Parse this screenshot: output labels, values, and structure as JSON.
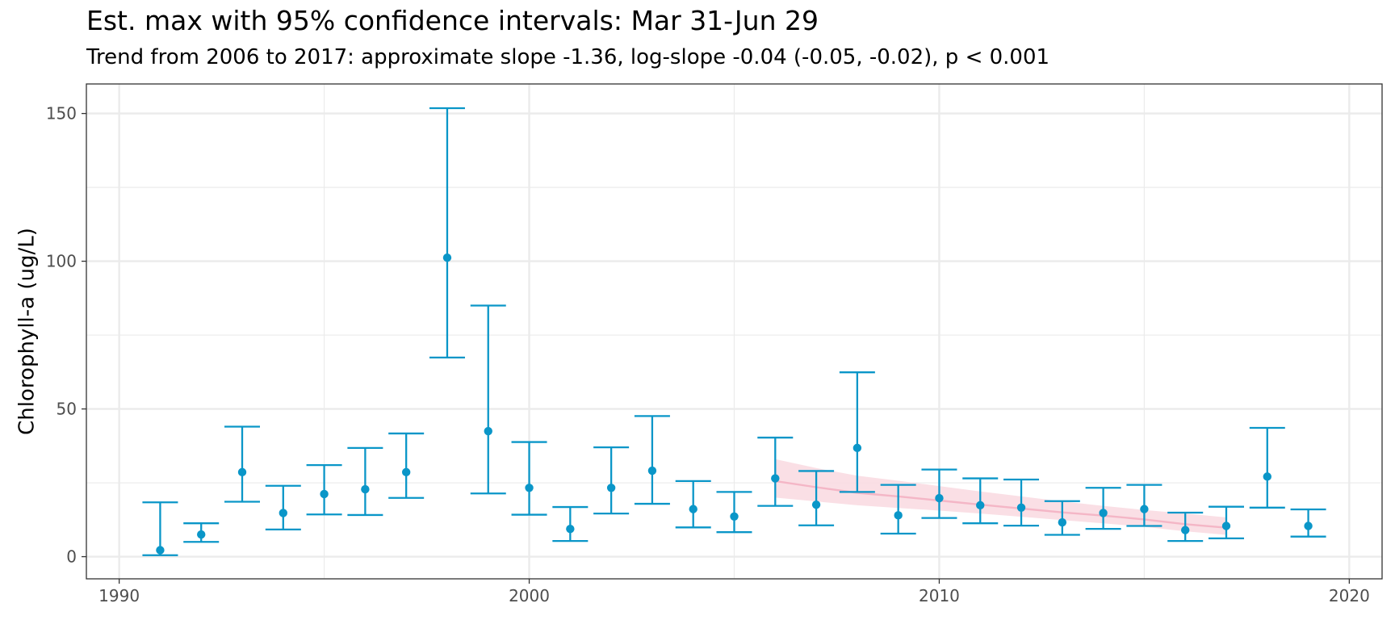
{
  "chart_data": {
    "type": "scatter",
    "title": "Est. max with 95% confidence intervals: Mar 31-Jun 29",
    "subtitle": "Trend from 2006 to 2017: approximate slope -1.36, log-slope -0.04 (-0.05, -0.02), p < 0.001",
    "xlabel": "",
    "ylabel": "Chlorophyll-a (ug/L)",
    "xlim": [
      1989.2,
      2020.8
    ],
    "ylim": [
      -7.5,
      160
    ],
    "x_ticks": [
      1990,
      2000,
      2010,
      2020
    ],
    "y_ticks": [
      0,
      50,
      100,
      150
    ],
    "x_minor": [
      1995,
      2005,
      2015
    ],
    "y_minor": [
      25,
      75,
      125
    ],
    "grid": true,
    "colors": {
      "points": "#0a96c8",
      "trend_line": "#f4b6c6",
      "trend_band": "#fadbe2",
      "grid": "#ebebeb",
      "panel_border": "#333333"
    },
    "series": [
      {
        "x": [
          1991,
          1992,
          1993,
          1994,
          1995,
          1996,
          1997,
          1998,
          1999,
          2000,
          2001,
          2002,
          2003,
          2004,
          2005,
          2006,
          2007,
          2008,
          2009,
          2010,
          2011,
          2012,
          2013,
          2014,
          2015,
          2016,
          2017,
          2018,
          2019
        ],
        "y": [
          2.2,
          7.5,
          28.6,
          14.8,
          21.2,
          22.8,
          28.6,
          101.2,
          42.5,
          23.3,
          9.4,
          23.3,
          29.1,
          16.1,
          13.6,
          26.5,
          17.6,
          36.8,
          14.0,
          19.8,
          17.4,
          16.6,
          11.6,
          14.8,
          16.1,
          9.0,
          10.4,
          27.1,
          10.4
        ],
        "lower": [
          0.5,
          5.0,
          18.6,
          9.2,
          14.3,
          14.1,
          19.9,
          67.4,
          21.4,
          14.2,
          5.3,
          14.6,
          17.9,
          9.9,
          8.3,
          17.2,
          10.6,
          21.9,
          7.8,
          13.1,
          11.3,
          10.5,
          7.4,
          9.4,
          10.4,
          5.3,
          6.2,
          16.6,
          6.8
        ],
        "upper": [
          18.4,
          11.3,
          44.0,
          24.0,
          31.0,
          36.8,
          41.7,
          151.8,
          85.0,
          38.8,
          16.8,
          37.0,
          47.6,
          25.6,
          21.9,
          40.3,
          29.0,
          62.4,
          24.3,
          29.5,
          26.5,
          26.1,
          18.8,
          23.3,
          24.3,
          14.9,
          16.9,
          43.6,
          16.0
        ]
      }
    ],
    "trend": {
      "x": [
        2006,
        2007,
        2008,
        2009,
        2010,
        2011,
        2012,
        2013,
        2014,
        2015,
        2016,
        2017
      ],
      "y": [
        25.6,
        23.5,
        21.6,
        20.4,
        19.0,
        17.6,
        16.3,
        15.0,
        13.9,
        12.6,
        11.0,
        9.8
      ],
      "lower": [
        20.0,
        18.7,
        17.4,
        16.5,
        15.6,
        14.6,
        13.5,
        12.4,
        11.3,
        10.1,
        8.6,
        7.4
      ],
      "upper": [
        33.0,
        30.0,
        27.4,
        25.7,
        23.9,
        22.1,
        20.4,
        18.7,
        17.2,
        15.8,
        14.6,
        13.3
      ]
    }
  }
}
